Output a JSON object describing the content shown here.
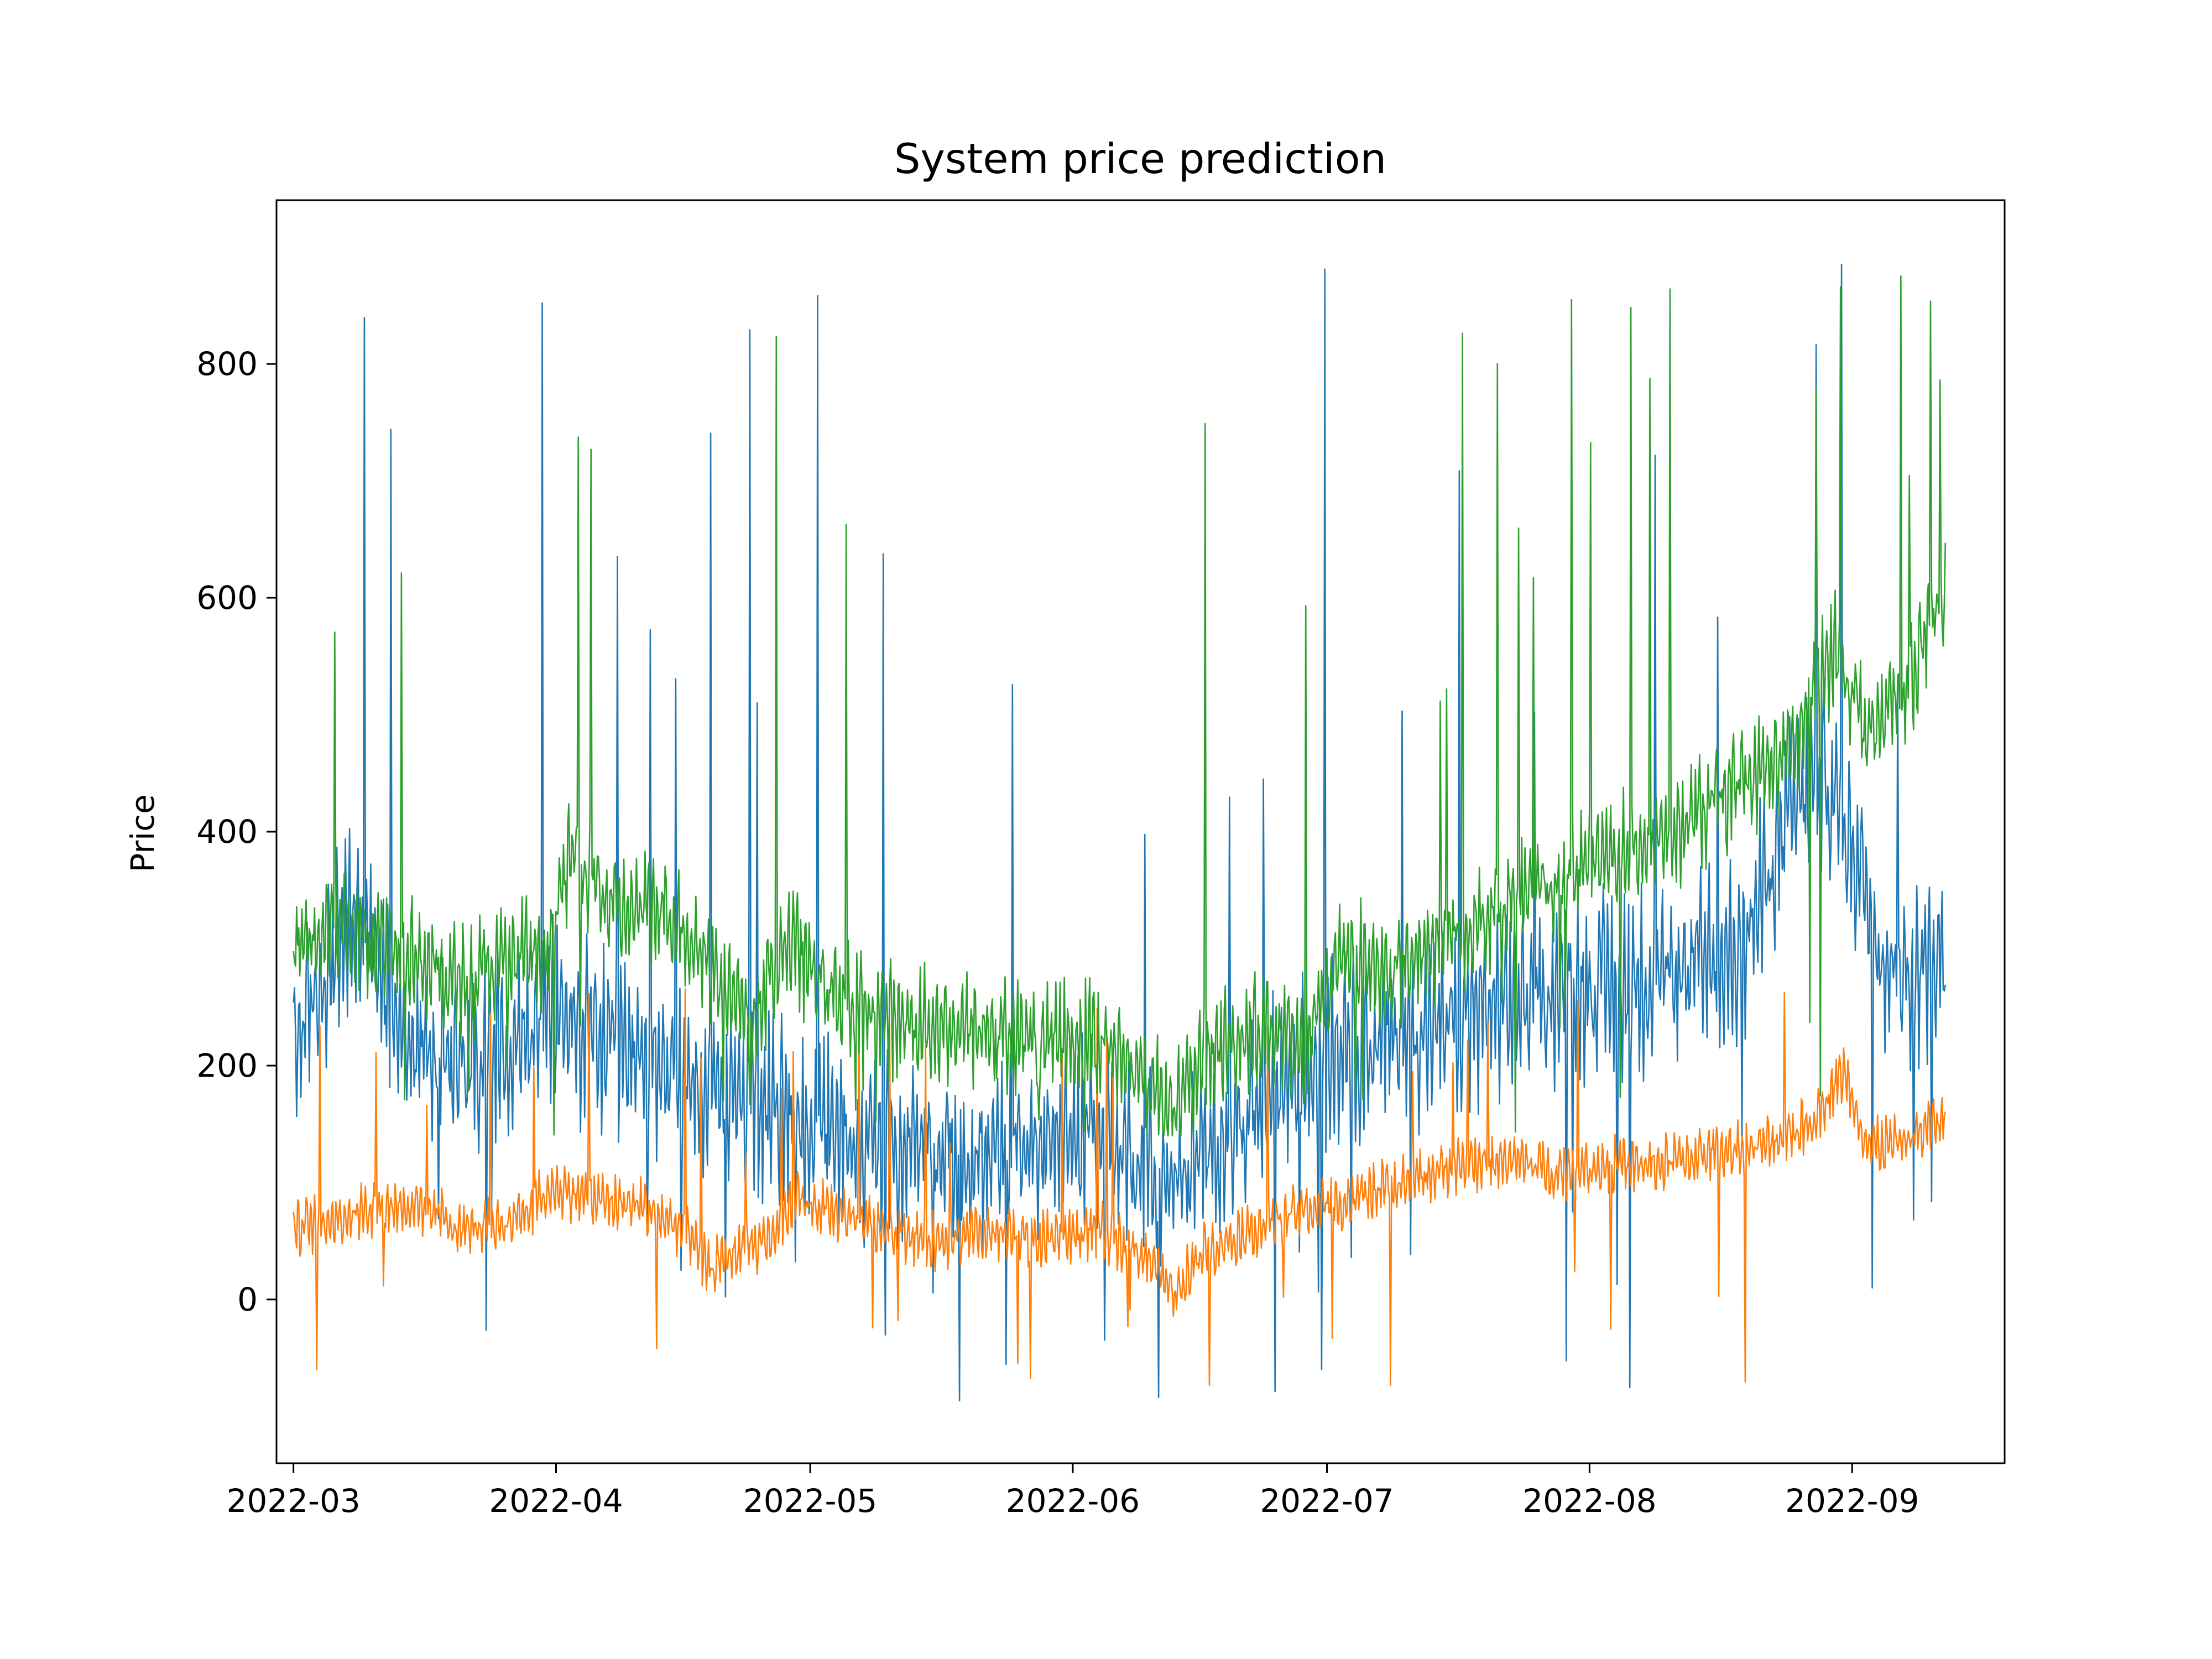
{
  "chart_data": {
    "type": "line",
    "title": "System price prediction",
    "xlabel": "",
    "ylabel": "Price",
    "x_type": "date",
    "x_ticks": [
      "2022-03",
      "2022-04",
      "2022-05",
      "2022-06",
      "2022-07",
      "2022-08",
      "2022-09"
    ],
    "y_ticks": [
      0,
      200,
      400,
      600,
      800
    ],
    "xlim": [
      "2022-02-27",
      "2022-09-19"
    ],
    "ylim": [
      -140,
      940
    ],
    "grid": false,
    "legend": "none",
    "x_range": [
      "2022-03-01",
      "2022-09-12"
    ],
    "series": [
      {
        "color": "#1f77b4",
        "keypoints": [
          [
            "2022-03-01",
            215
          ],
          [
            "2022-03-04",
            265
          ],
          [
            "2022-03-08",
            330
          ],
          [
            "2022-03-12",
            260
          ],
          [
            "2022-03-16",
            215
          ],
          [
            "2022-03-20",
            200
          ],
          [
            "2022-03-24",
            215
          ],
          [
            "2022-03-28",
            225
          ],
          [
            "2022-04-01",
            245
          ],
          [
            "2022-04-05",
            225
          ],
          [
            "2022-04-10",
            205
          ],
          [
            "2022-04-15",
            200
          ],
          [
            "2022-04-20",
            165
          ],
          [
            "2022-04-25",
            165
          ],
          [
            "2022-05-01",
            150
          ],
          [
            "2022-05-08",
            130
          ],
          [
            "2022-05-15",
            125
          ],
          [
            "2022-05-22",
            120
          ],
          [
            "2022-05-29",
            140
          ],
          [
            "2022-06-04",
            140
          ],
          [
            "2022-06-10",
            115
          ],
          [
            "2022-06-13",
            95
          ],
          [
            "2022-06-18",
            135
          ],
          [
            "2022-06-24",
            175
          ],
          [
            "2022-07-01",
            210
          ],
          [
            "2022-07-08",
            220
          ],
          [
            "2022-07-15",
            235
          ],
          [
            "2022-07-22",
            255
          ],
          [
            "2022-07-29",
            265
          ],
          [
            "2022-08-05",
            270
          ],
          [
            "2022-08-12",
            280
          ],
          [
            "2022-08-19",
            295
          ],
          [
            "2022-08-24",
            405
          ],
          [
            "2022-08-28",
            455
          ],
          [
            "2022-09-01",
            390
          ],
          [
            "2022-09-05",
            285
          ],
          [
            "2022-09-08",
            275
          ],
          [
            "2022-09-12",
            300
          ]
        ],
        "spread": 55,
        "spike_min": -90,
        "spike_max": 890
      },
      {
        "color": "#ff7f0e",
        "keypoints": [
          [
            "2022-03-01",
            60
          ],
          [
            "2022-03-06",
            70
          ],
          [
            "2022-03-11",
            80
          ],
          [
            "2022-03-16",
            80
          ],
          [
            "2022-03-21",
            60
          ],
          [
            "2022-03-26",
            65
          ],
          [
            "2022-04-01",
            95
          ],
          [
            "2022-04-06",
            85
          ],
          [
            "2022-04-11",
            80
          ],
          [
            "2022-04-16",
            60
          ],
          [
            "2022-04-19",
            25
          ],
          [
            "2022-04-23",
            45
          ],
          [
            "2022-04-26",
            45
          ],
          [
            "2022-04-29",
            85
          ],
          [
            "2022-05-04",
            75
          ],
          [
            "2022-05-10",
            60
          ],
          [
            "2022-05-16",
            50
          ],
          [
            "2022-05-22",
            55
          ],
          [
            "2022-05-28",
            50
          ],
          [
            "2022-06-04",
            60
          ],
          [
            "2022-06-10",
            35
          ],
          [
            "2022-06-13",
            5
          ],
          [
            "2022-06-16",
            40
          ],
          [
            "2022-06-22",
            60
          ],
          [
            "2022-06-28",
            75
          ],
          [
            "2022-07-04",
            85
          ],
          [
            "2022-07-10",
            100
          ],
          [
            "2022-07-16",
            115
          ],
          [
            "2022-07-22",
            120
          ],
          [
            "2022-07-28",
            110
          ],
          [
            "2022-08-03",
            115
          ],
          [
            "2022-08-09",
            115
          ],
          [
            "2022-08-15",
            125
          ],
          [
            "2022-08-21",
            130
          ],
          [
            "2022-08-27",
            150
          ],
          [
            "2022-08-31",
            195
          ],
          [
            "2022-09-03",
            130
          ],
          [
            "2022-09-07",
            135
          ],
          [
            "2022-09-12",
            155
          ]
        ],
        "spread": 18,
        "spike_min": -75,
        "spike_max": 275
      },
      {
        "color": "#2ca02c",
        "keypoints": [
          [
            "2022-03-01",
            300
          ],
          [
            "2022-03-05",
            325
          ],
          [
            "2022-03-10",
            310
          ],
          [
            "2022-03-15",
            300
          ],
          [
            "2022-03-19",
            270
          ],
          [
            "2022-03-25",
            285
          ],
          [
            "2022-03-31",
            300
          ],
          [
            "2022-04-03",
            385
          ],
          [
            "2022-04-08",
            330
          ],
          [
            "2022-04-14",
            335
          ],
          [
            "2022-04-19",
            290
          ],
          [
            "2022-04-24",
            230
          ],
          [
            "2022-04-28",
            310
          ],
          [
            "2022-05-03",
            265
          ],
          [
            "2022-05-10",
            240
          ],
          [
            "2022-05-20",
            230
          ],
          [
            "2022-05-28",
            225
          ],
          [
            "2022-06-04",
            225
          ],
          [
            "2022-06-10",
            185
          ],
          [
            "2022-06-13",
            165
          ],
          [
            "2022-06-18",
            215
          ],
          [
            "2022-06-24",
            235
          ],
          [
            "2022-06-28",
            205
          ],
          [
            "2022-07-03",
            300
          ],
          [
            "2022-07-08",
            275
          ],
          [
            "2022-07-15",
            305
          ],
          [
            "2022-07-22",
            340
          ],
          [
            "2022-07-29",
            360
          ],
          [
            "2022-08-05",
            385
          ],
          [
            "2022-08-12",
            405
          ],
          [
            "2022-08-19",
            440
          ],
          [
            "2022-08-25",
            470
          ],
          [
            "2022-08-30",
            560
          ],
          [
            "2022-09-03",
            480
          ],
          [
            "2022-09-07",
            520
          ],
          [
            "2022-09-12",
            600
          ]
        ],
        "spread": 35,
        "spike_min": 140,
        "spike_max": 890
      }
    ]
  }
}
